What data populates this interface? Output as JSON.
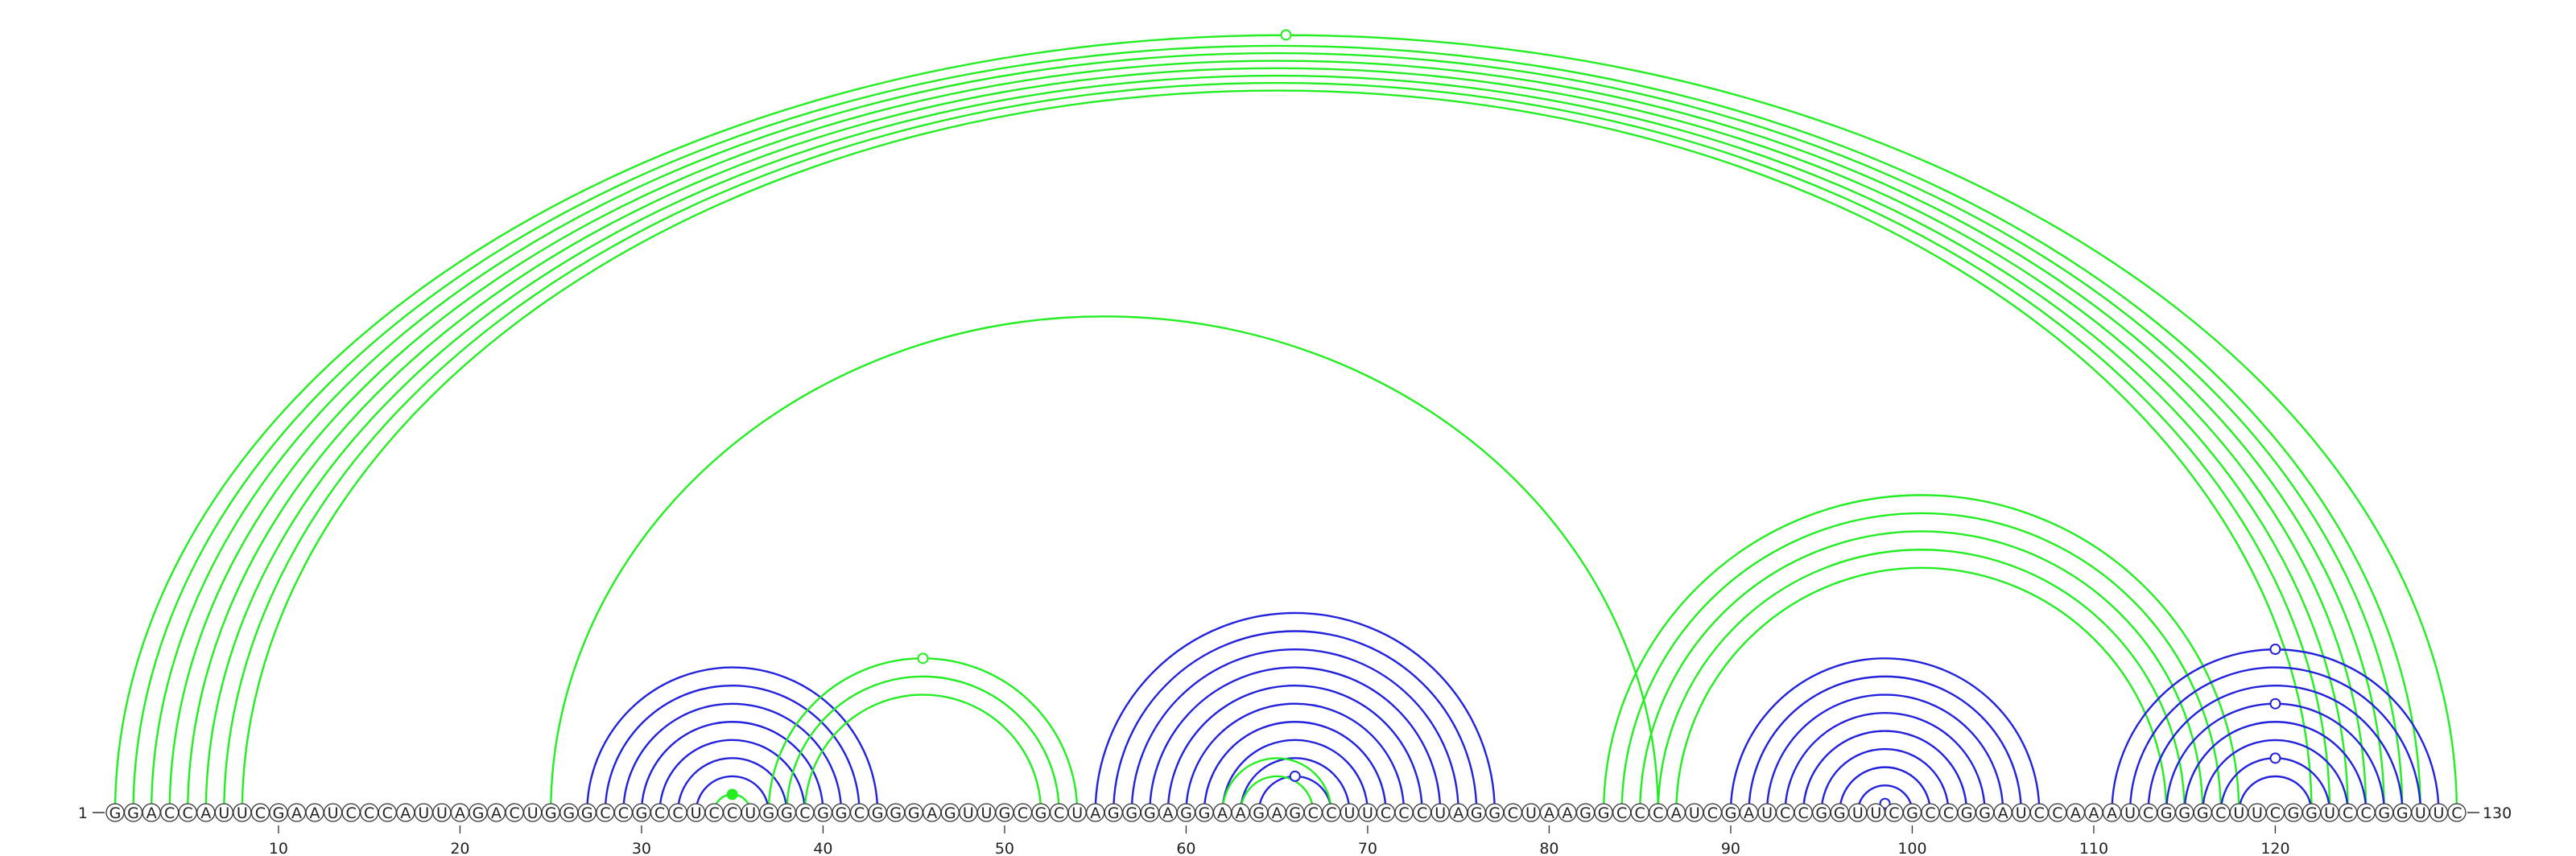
{
  "diagram": {
    "sequence": "GGACCAUUCGAAUCCCAUUAGACUGGGCCGCCUCCUGGCGGCGGGAGUUGCGCUAGGGAGGAAGAGCCUUCCCUAGGCUAAGGCCCAUCGAUCCGGUUCGCCGGAUCCAAAUCGGGCUUCGGUCCGGUUC",
    "start_label": "1",
    "end_label": "130",
    "ticks": [
      "10",
      "20",
      "30",
      "40",
      "50",
      "60",
      "70",
      "80",
      "90",
      "100",
      "110",
      "120"
    ],
    "colors": {
      "green": "#22ee22",
      "blue": "#2222dd"
    },
    "arc_groups": [
      {
        "color": "green",
        "pairs": [
          [
            1,
            130
          ],
          [
            2,
            128
          ],
          [
            3,
            127
          ],
          [
            4,
            126
          ],
          [
            5,
            125
          ],
          [
            6,
            124
          ],
          [
            7,
            123
          ],
          [
            8,
            122
          ]
        ]
      },
      {
        "color": "green",
        "pairs": [
          [
            25,
            86
          ]
        ]
      },
      {
        "color": "blue",
        "pairs": [
          [
            27,
            43
          ],
          [
            28,
            42
          ],
          [
            29,
            41
          ],
          [
            30,
            40
          ],
          [
            31,
            39
          ],
          [
            32,
            38
          ],
          [
            33,
            37
          ]
        ]
      },
      {
        "color": "green",
        "pairs": [
          [
            34,
            36
          ]
        ]
      },
      {
        "color": "green",
        "pairs": [
          [
            37,
            54
          ],
          [
            38,
            53
          ],
          [
            39,
            52
          ]
        ]
      },
      {
        "color": "blue",
        "pairs": [
          [
            55,
            77
          ],
          [
            56,
            76
          ],
          [
            57,
            75
          ],
          [
            58,
            74
          ],
          [
            59,
            73
          ],
          [
            60,
            72
          ],
          [
            61,
            71
          ],
          [
            62,
            70
          ],
          [
            63,
            69
          ],
          [
            64,
            68
          ]
        ]
      },
      {
        "color": "green",
        "pairs": [
          [
            62,
            68
          ],
          [
            63,
            67
          ]
        ]
      },
      {
        "color": "green",
        "pairs": [
          [
            83,
            118
          ],
          [
            84,
            117
          ],
          [
            85,
            116
          ],
          [
            86,
            115
          ],
          [
            87,
            114
          ]
        ]
      },
      {
        "color": "blue",
        "pairs": [
          [
            90,
            107
          ],
          [
            91,
            106
          ],
          [
            92,
            105
          ],
          [
            93,
            104
          ],
          [
            94,
            103
          ],
          [
            95,
            102
          ],
          [
            96,
            101
          ],
          [
            97,
            100
          ],
          [
            98,
            99
          ]
        ]
      },
      {
        "color": "blue",
        "pairs": [
          [
            111,
            129
          ],
          [
            112,
            128
          ],
          [
            113,
            127
          ],
          [
            114,
            126
          ],
          [
            115,
            125
          ],
          [
            116,
            124
          ],
          [
            117,
            123
          ],
          [
            118,
            122
          ]
        ]
      }
    ],
    "markers": [
      {
        "pos": 65.5,
        "height_of": [
          1,
          130
        ],
        "color": "green",
        "filled": false
      },
      {
        "pos": 45.5,
        "height_of": [
          37,
          54
        ],
        "color": "green",
        "filled": false
      },
      {
        "pos": 35,
        "height_of": [
          34,
          36
        ],
        "color": "green",
        "filled": true
      },
      {
        "pos": 66,
        "height_of": [
          64,
          68
        ],
        "color": "blue",
        "filled": false
      },
      {
        "pos": 98.5,
        "height_of": [
          98,
          99
        ],
        "color": "blue",
        "filled": false
      },
      {
        "pos": 120,
        "height_of": [
          111,
          129
        ],
        "color": "blue",
        "filled": false
      },
      {
        "pos": 120,
        "height_of": [
          114,
          126
        ],
        "color": "blue",
        "filled": false
      },
      {
        "pos": 120,
        "height_of": [
          117,
          123
        ],
        "color": "blue",
        "filled": false
      }
    ]
  }
}
